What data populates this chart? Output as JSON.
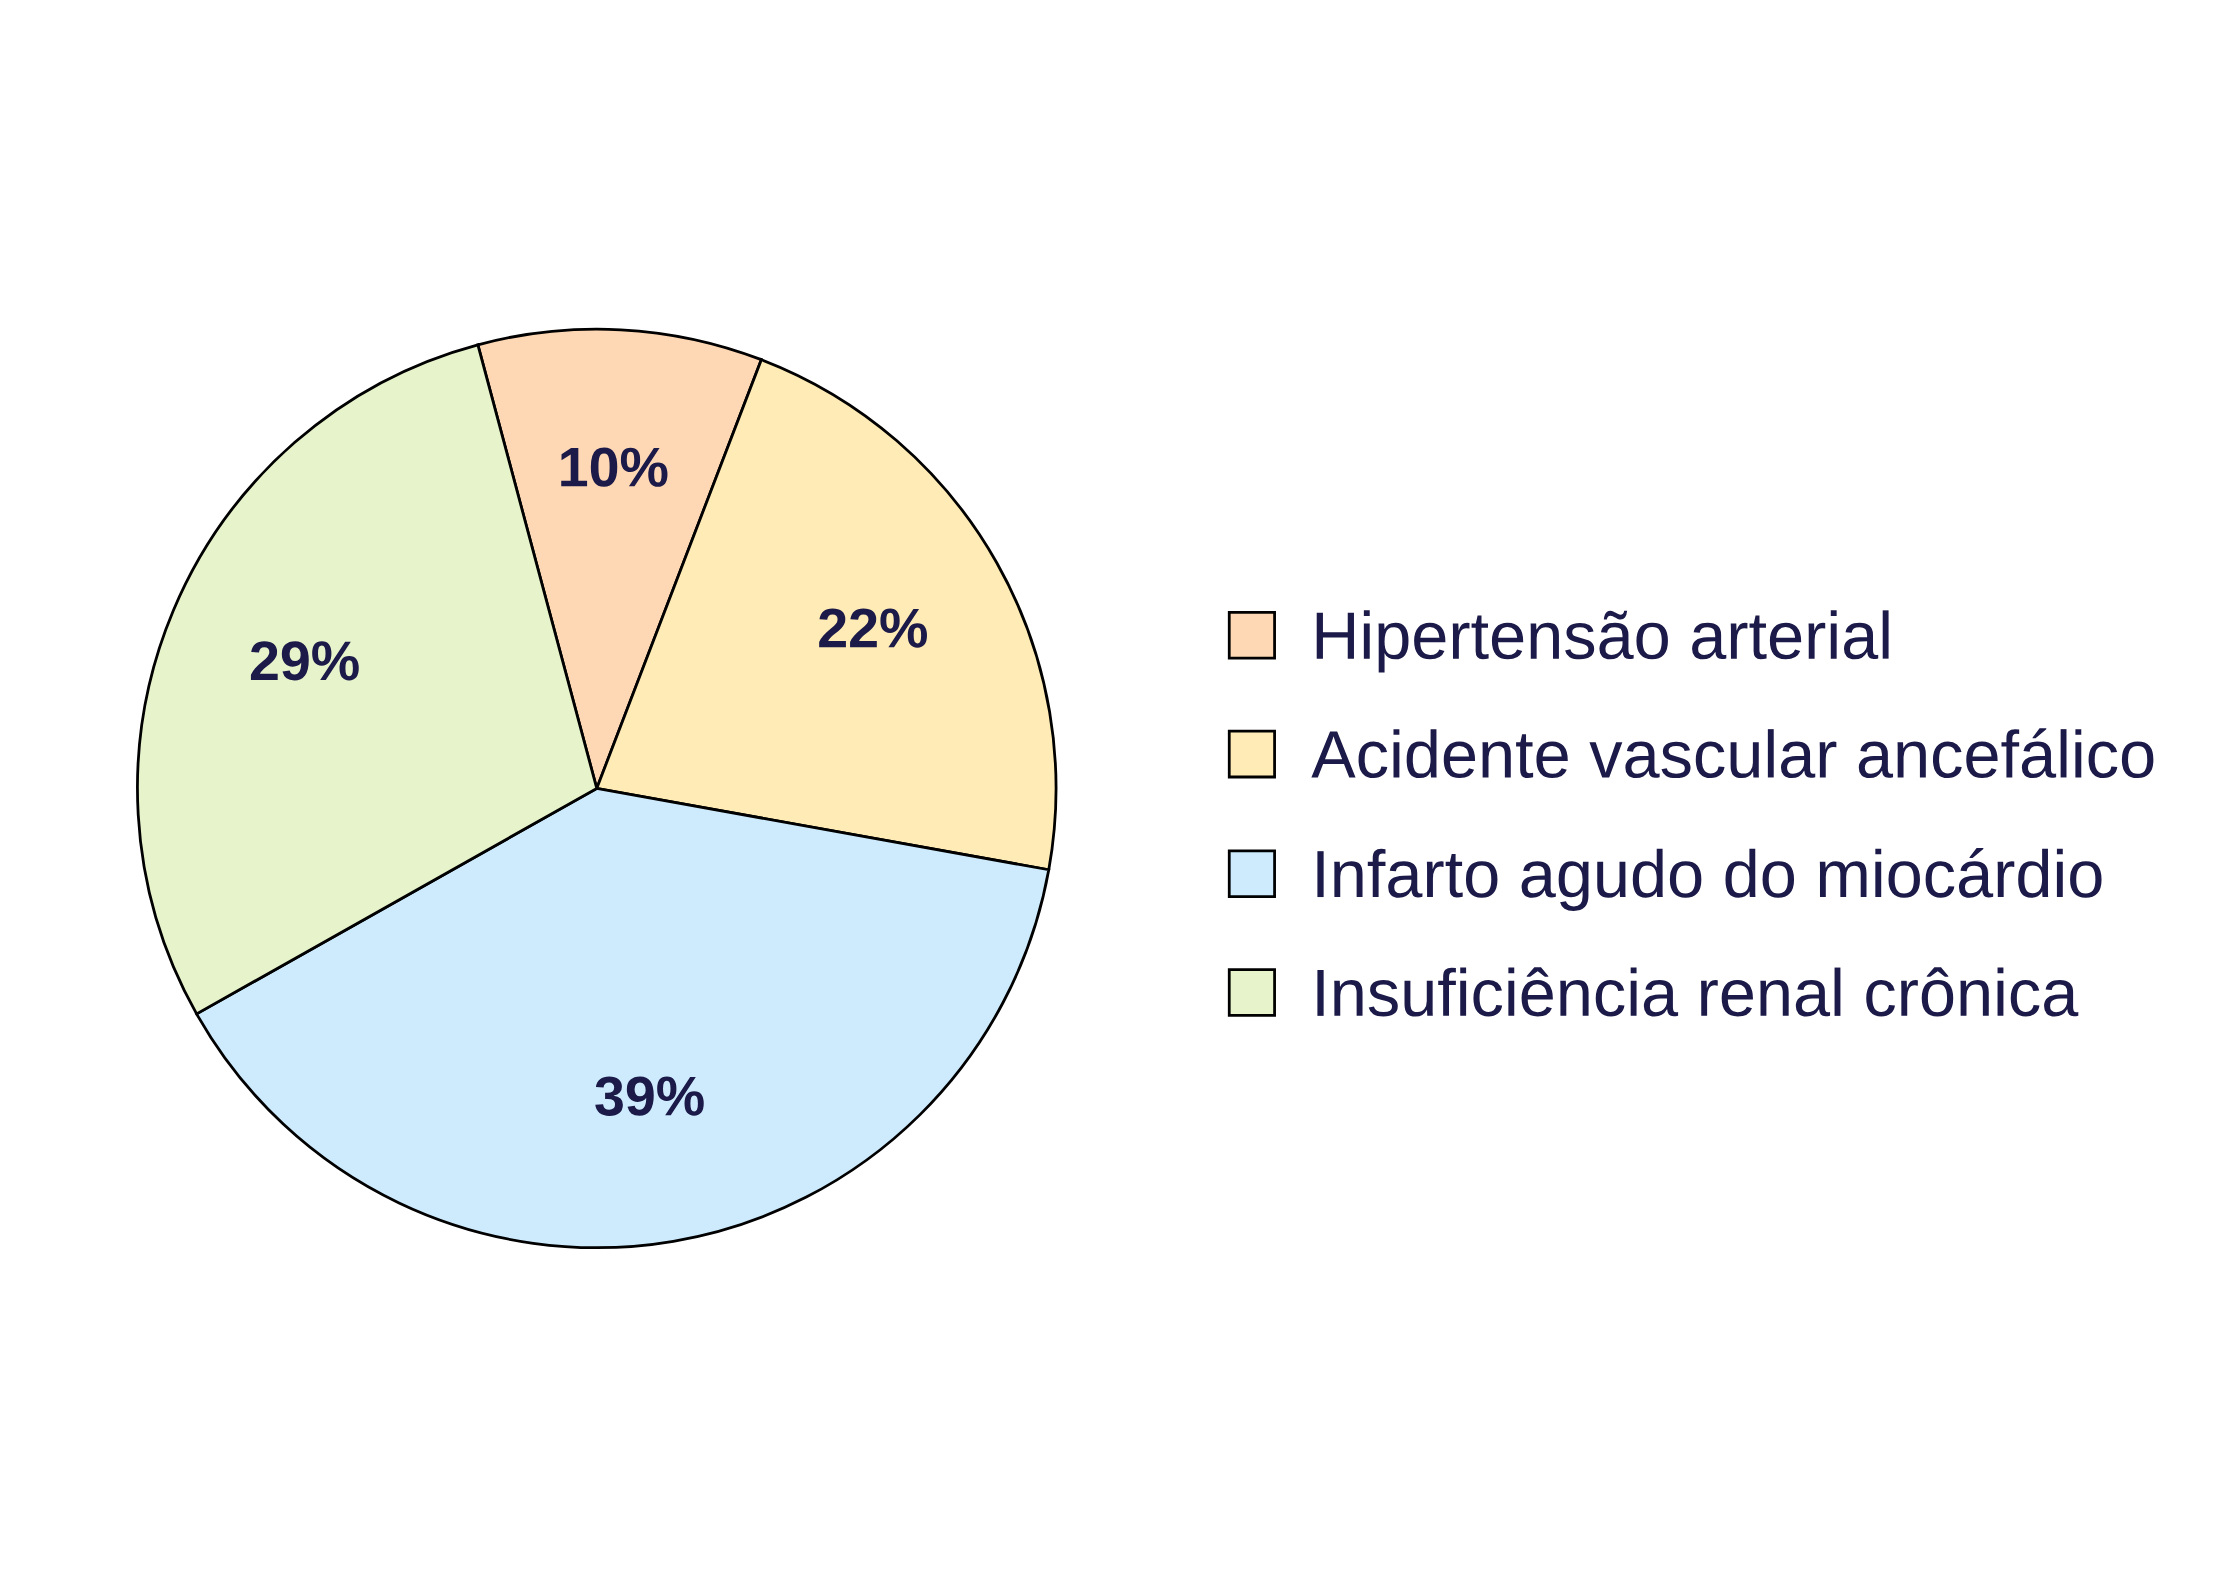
{
  "chart_data": {
    "type": "pie",
    "categories": [
      "Hipertensão arterial",
      "Acidente vascular ancefálico",
      "Infarto agudo do miocárdio",
      "Insuficiência renal crônica"
    ],
    "values": [
      10,
      22,
      39,
      29
    ],
    "colors": [
      "#fed8b4",
      "#feebb5",
      "#cdebfd",
      "#e7f3cb"
    ],
    "value_labels": [
      "10%",
      "22%",
      "39%",
      "29%"
    ],
    "legend": "right"
  }
}
